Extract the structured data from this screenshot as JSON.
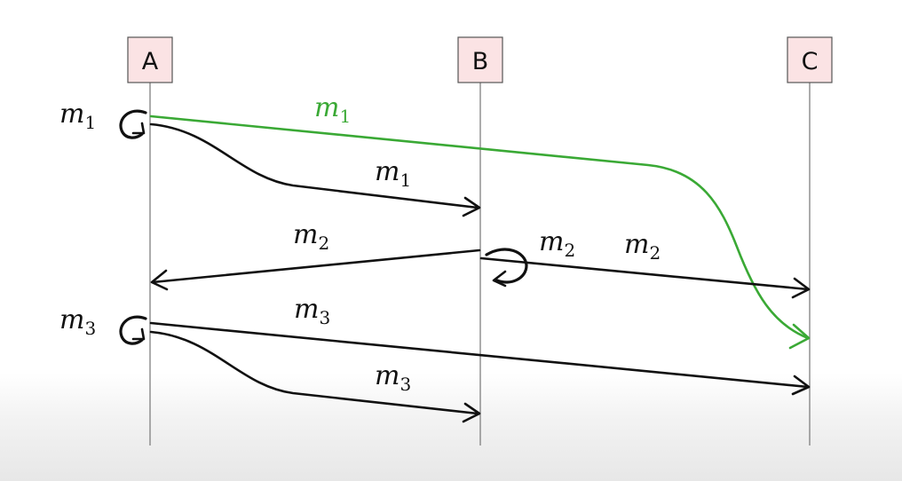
{
  "processes": [
    {
      "id": "A",
      "label": "A"
    },
    {
      "id": "B",
      "label": "B"
    },
    {
      "id": "C",
      "label": "C"
    }
  ],
  "broadcasts": [
    {
      "sender": "B",
      "var": "m",
      "sub": "2"
    }
  ],
  "self_deliveries": [
    {
      "process": "A",
      "var": "m",
      "sub": "1"
    },
    {
      "process": "A",
      "var": "m",
      "sub": "3"
    }
  ],
  "messages": [
    {
      "from": "A",
      "to": "C",
      "var": "m",
      "sub": "1",
      "highlight": true
    },
    {
      "from": "A",
      "to": "B",
      "var": "m",
      "sub": "1",
      "highlight": false
    },
    {
      "from": "B",
      "to": "A",
      "var": "m",
      "sub": "2",
      "highlight": false
    },
    {
      "from": "B",
      "to": "C",
      "var": "m",
      "sub": "2",
      "highlight": false
    },
    {
      "from": "A",
      "to": "C",
      "var": "m",
      "sub": "3",
      "highlight": false
    },
    {
      "from": "A",
      "to": "B",
      "var": "m",
      "sub": "3",
      "highlight": false
    }
  ],
  "colors": {
    "message": "#111111",
    "highlight": "#3aa935",
    "box_fill": "#fbe3e4"
  }
}
